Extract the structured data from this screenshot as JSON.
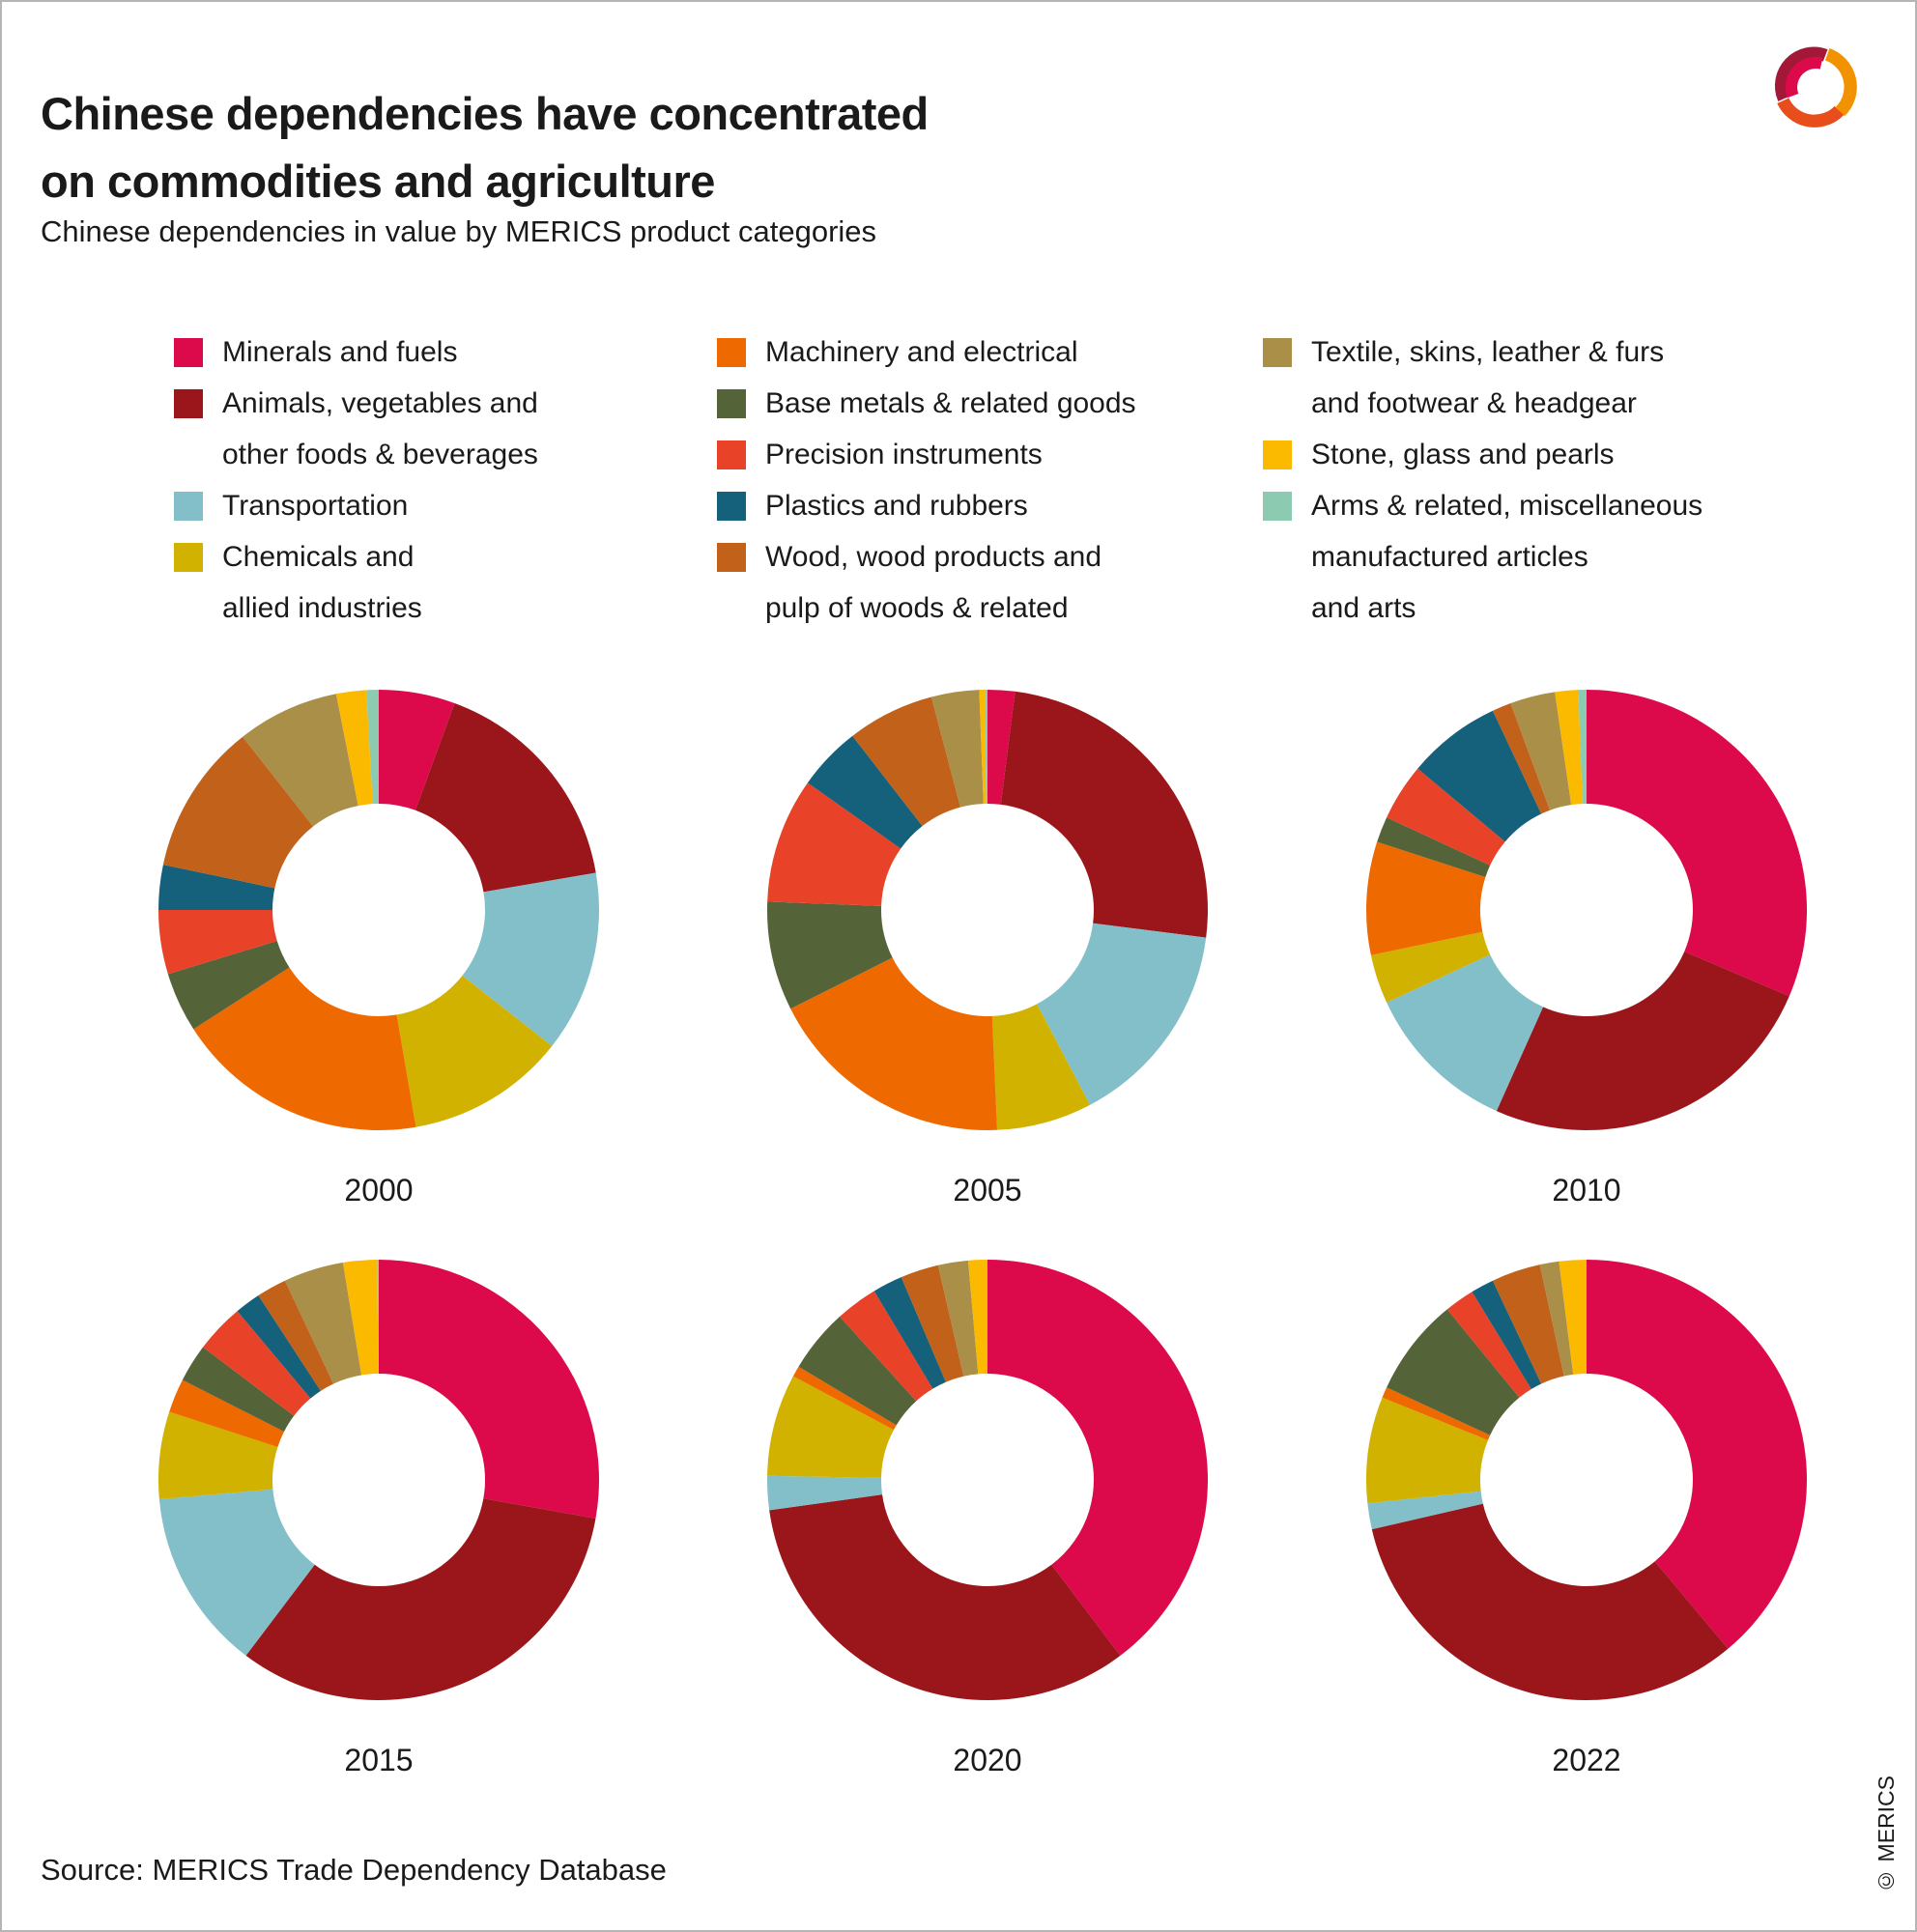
{
  "header": {
    "title": "Chinese dependencies have concentrated\non commodities and agriculture",
    "subtitle": "Chinese dependencies in value by MERICS product categories"
  },
  "legend": {
    "columns": [
      {
        "items": [
          {
            "key": "minerals",
            "label": "Minerals and fuels"
          },
          {
            "key": "animals",
            "label": "Animals, vegetables and\nother foods & beverages"
          },
          {
            "key": "transportation",
            "label": "Transportation"
          },
          {
            "key": "chemicals",
            "label": "Chemicals and\nallied industries"
          }
        ]
      },
      {
        "items": [
          {
            "key": "machinery",
            "label": "Machinery and electrical"
          },
          {
            "key": "base_metals",
            "label": "Base metals & related goods"
          },
          {
            "key": "precision",
            "label": "Precision instruments"
          },
          {
            "key": "plastics",
            "label": "Plastics and rubbers"
          },
          {
            "key": "wood",
            "label": "Wood, wood products and\npulp of woods & related"
          }
        ]
      },
      {
        "items": [
          {
            "key": "textile",
            "label": "Textile, skins, leather & furs\nand footwear & headgear"
          },
          {
            "key": "stone",
            "label": "Stone, glass and pearls"
          },
          {
            "key": "arms",
            "label": "Arms & related, miscellaneous\nmanufactured articles\nand arts"
          }
        ]
      }
    ]
  },
  "footer": {
    "source": "Source: MERICS Trade Dependency Database",
    "copyright": "© MERICS"
  },
  "chart_data": {
    "type": "donut",
    "title": "Chinese dependencies in value by MERICS product categories",
    "unit": "percent share of total dependency value",
    "inner_radius_ratio": 0.48,
    "start_angle_deg": 0,
    "direction": "clockwise",
    "legend_position": "top",
    "category_keys": [
      "minerals",
      "animals",
      "transportation",
      "chemicals",
      "machinery",
      "base_metals",
      "precision",
      "plastics",
      "wood",
      "textile",
      "stone",
      "arms"
    ],
    "categories": [
      "Minerals and fuels",
      "Animals, vegetables and other foods & beverages",
      "Transportation",
      "Chemicals and allied industries",
      "Machinery and electrical",
      "Base metals & related goods",
      "Precision instruments",
      "Plastics and rubbers",
      "Wood, wood products and pulp of woods & related",
      "Textile, skins, leather & furs and footwear & headgear",
      "Stone, glass and pearls",
      "Arms & related, miscellaneous manufactured articles and arts"
    ],
    "colors": {
      "minerals": "#DC0A4B",
      "animals": "#9B161B",
      "transportation": "#82BFC9",
      "chemicals": "#D2B200",
      "machinery": "#EE6A00",
      "base_metals": "#556339",
      "precision": "#E84328",
      "plastics": "#15607A",
      "wood": "#C2611A",
      "textile": "#A98F48",
      "stone": "#FBBA00",
      "arms": "#8CCAB1"
    },
    "years": [
      {
        "year": "2000",
        "values": [
          5.6,
          16.7,
          13.3,
          11.7,
          18.6,
          4.4,
          4.7,
          3.3,
          11.1,
          7.5,
          2.2,
          0.9
        ]
      },
      {
        "year": "2005",
        "values": [
          2.0,
          25.0,
          15.3,
          7.0,
          18.3,
          8.0,
          9.2,
          4.7,
          6.4,
          3.5,
          0.4,
          0.2
        ]
      },
      {
        "year": "2010",
        "values": [
          31.4,
          25.3,
          11.4,
          3.6,
          8.3,
          1.9,
          4.2,
          6.9,
          1.4,
          3.3,
          1.7,
          0.6
        ]
      },
      {
        "year": "2015",
        "values": [
          27.8,
          32.5,
          13.3,
          6.4,
          2.5,
          2.8,
          3.6,
          1.9,
          2.2,
          4.4,
          2.5,
          0.1
        ]
      },
      {
        "year": "2020",
        "values": [
          39.7,
          33.1,
          2.5,
          7.5,
          0.8,
          4.7,
          3.1,
          2.2,
          2.8,
          2.2,
          1.4,
          0.0
        ]
      },
      {
        "year": "2022",
        "values": [
          38.9,
          32.5,
          1.9,
          7.8,
          0.8,
          7.2,
          2.2,
          1.7,
          3.6,
          1.4,
          2.0,
          0.0
        ]
      }
    ]
  }
}
